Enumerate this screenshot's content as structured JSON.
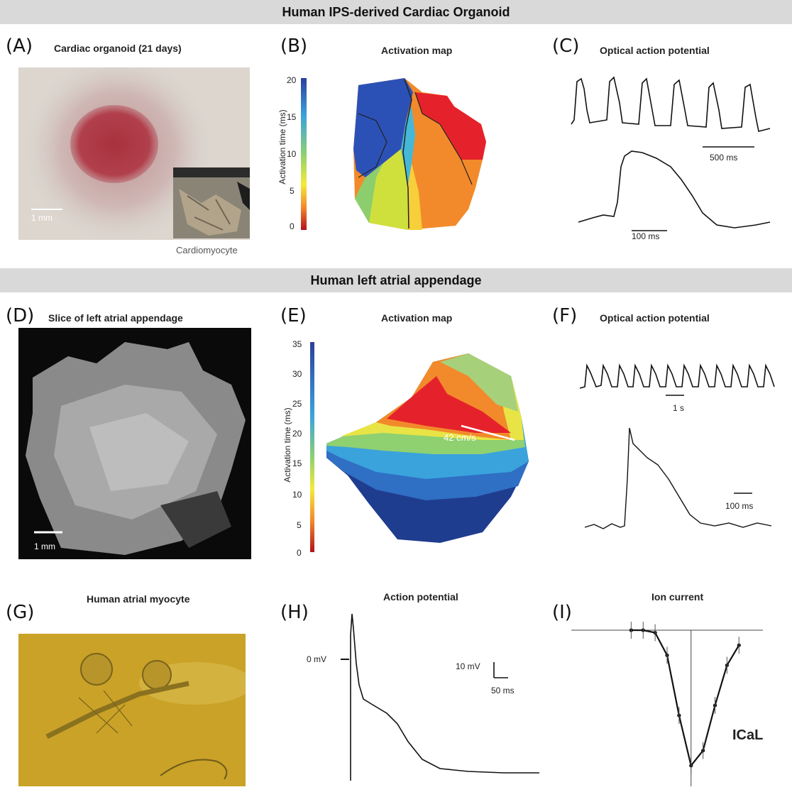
{
  "banners": {
    "top": "Human IPS-derived Cardiac Organoid",
    "middle": "Human left atrial appendage"
  },
  "panels": {
    "A": {
      "letter": "(A)",
      "title": "Cardiac organoid (21 days)",
      "scale": "1 mm",
      "inset_caption": "Cardiomyocyte"
    },
    "B": {
      "letter": "(B)",
      "title": "Activation map",
      "axis_label": "Activation time (ms)",
      "ticks": [
        "20",
        "15",
        "10",
        "5",
        "0"
      ]
    },
    "C": {
      "letter": "(C)",
      "title": "Optical action potential",
      "scale_top": "500 ms",
      "scale_bottom": "100 ms"
    },
    "D": {
      "letter": "(D)",
      "title": "Slice of left atrial appendage",
      "scale": "1 mm"
    },
    "E": {
      "letter": "(E)",
      "title": "Activation map",
      "axis_label": "Activation time (ms)",
      "ticks": [
        "35",
        "30",
        "25",
        "20",
        "15",
        "10",
        "5",
        "0"
      ],
      "velocity": "42 cm/s"
    },
    "F": {
      "letter": "(F)",
      "title": "Optical action potential",
      "scale_top": "1 s",
      "scale_bottom": "100 ms"
    },
    "G": {
      "letter": "(G)",
      "title": "Human atrial myocyte"
    },
    "H": {
      "letter": "(H)",
      "title": "Action potential",
      "zero_label": "0 mV",
      "scale_v": "10 mV",
      "scale_t": "50 ms"
    },
    "I": {
      "letter": "(I)",
      "title": "Ion current",
      "label": "ICaL"
    }
  },
  "chart_data": {
    "type": "line",
    "title": "Ion current",
    "x": [
      -50,
      -40,
      -30,
      -20,
      -10,
      0,
      10,
      20,
      30,
      40
    ],
    "y": [
      0.3,
      0.2,
      -0.5,
      -5,
      -17,
      -27,
      -24,
      -15,
      -7,
      -3
    ],
    "xlim": [
      -100,
      60
    ],
    "series_label": "ICaL"
  },
  "colors": {
    "banner": "#d9d9d9",
    "organoid": "#a8323e",
    "myocyte_bg": "#c9a227"
  }
}
